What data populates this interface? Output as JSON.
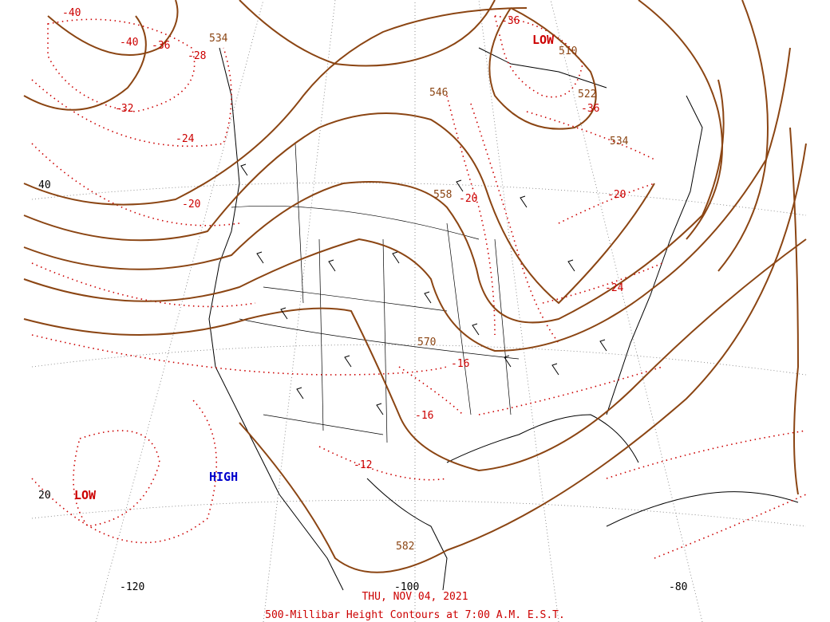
{
  "colors": {
    "height": "#8b4513",
    "temperature": "#cc0000",
    "coast": "#000000",
    "high": "#0000cc"
  },
  "height_labels": [
    "534",
    "546",
    "558",
    "570",
    "582",
    "510",
    "522",
    "534"
  ],
  "temp_labels": [
    "-40",
    "-40",
    "-36",
    "-28",
    "-32",
    "-24",
    "-20",
    "-36",
    "-36",
    "-20",
    "-20",
    "-24",
    "-16",
    "-16",
    "-12"
  ],
  "systems": {
    "low1": "LOW",
    "low2": "LOW",
    "high1": "HIGH"
  },
  "axis": {
    "lat40": "40",
    "lat20": "20",
    "lon120": "-120",
    "lon100": "-100",
    "lon80": "-80"
  },
  "footer": {
    "date": "THU, NOV 04, 2021",
    "title": "500-Millibar Height Contours at 7:00 A.M. E.S.T."
  }
}
